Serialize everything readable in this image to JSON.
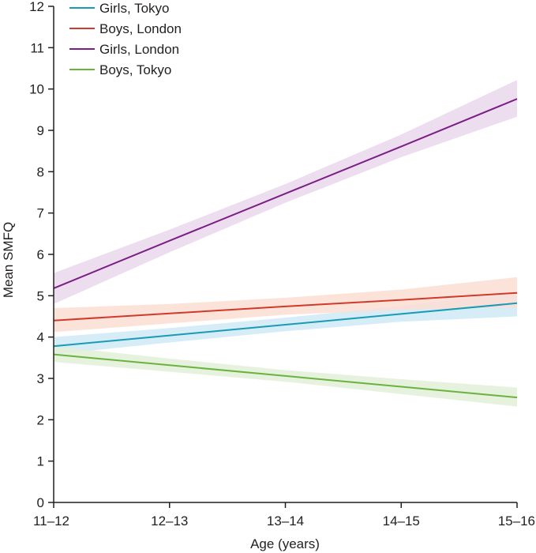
{
  "chart_data": {
    "type": "line",
    "xlabel": "Age (years)",
    "ylabel": "Mean SMFQ",
    "categories": [
      "11–12",
      "12–13",
      "13–14",
      "14–15",
      "15–16"
    ],
    "ylim": [
      0,
      12
    ],
    "yticks": [
      0,
      1,
      2,
      3,
      4,
      5,
      6,
      7,
      8,
      9,
      10,
      11,
      12
    ],
    "grid": false,
    "legend_position": "top-left",
    "series": [
      {
        "name": "Girls, Tokyo",
        "color": "#1a9bb5",
        "band_color": "#cfe9f4",
        "values": [
          3.78,
          4.04,
          4.3,
          4.56,
          4.82
        ],
        "lower": [
          3.58,
          3.87,
          4.14,
          4.37,
          4.5
        ],
        "upper": [
          4.0,
          4.22,
          4.47,
          4.75,
          5.1
        ]
      },
      {
        "name": "Boys, London",
        "color": "#cf3a2b",
        "band_color": "#fbded3",
        "values": [
          4.4,
          4.57,
          4.74,
          4.9,
          5.07
        ],
        "lower": [
          4.12,
          4.33,
          4.54,
          4.66,
          4.72
        ],
        "upper": [
          4.7,
          4.8,
          4.95,
          5.15,
          5.45
        ]
      },
      {
        "name": "Girls, London",
        "color": "#7b1f86",
        "band_color": "#ead8ec",
        "values": [
          5.18,
          6.33,
          7.47,
          8.61,
          9.76
        ],
        "lower": [
          4.8,
          6.05,
          7.25,
          8.35,
          9.33
        ],
        "upper": [
          5.55,
          6.6,
          7.7,
          8.9,
          10.22
        ]
      },
      {
        "name": "Boys, Tokyo",
        "color": "#6ab33e",
        "band_color": "#e3f0d8",
        "values": [
          3.58,
          3.32,
          3.06,
          2.8,
          2.54
        ],
        "lower": [
          3.4,
          3.16,
          2.92,
          2.62,
          2.32
        ],
        "upper": [
          3.78,
          3.48,
          3.2,
          2.98,
          2.78
        ]
      }
    ]
  }
}
